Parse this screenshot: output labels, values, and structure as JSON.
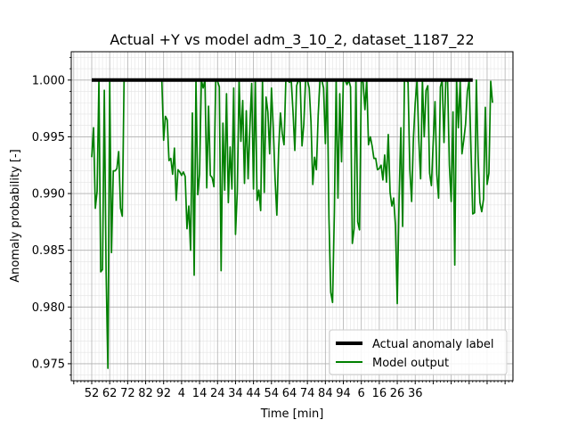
{
  "chart_data": {
    "type": "line",
    "title": "Actual +Y vs model adm_3_10_2, dataset_1187_22",
    "xlabel": "Time [min]",
    "ylabel": "Anomaly probability [-]",
    "ylim": [
      0.9735,
      1.0025
    ],
    "yticks": [
      "0.975",
      "0.980",
      "0.985",
      "0.990",
      "0.995",
      "1.000"
    ],
    "xticks": [
      "52",
      "62",
      "72",
      "82",
      "92",
      "4",
      "14",
      "24",
      "34",
      "44",
      "54",
      "64",
      "74",
      "84",
      "94",
      "6",
      "16",
      "26",
      "36"
    ],
    "grid": true,
    "legend_position": "lower right",
    "series": [
      {
        "name": "Actual anomaly label",
        "color": "#000000",
        "values": [
          1,
          1,
          1,
          1,
          1,
          1,
          1,
          1,
          1,
          1,
          1,
          1,
          1,
          1,
          1,
          1,
          1,
          1,
          1,
          1,
          1,
          1,
          1,
          1,
          1,
          1,
          1,
          1,
          1,
          1,
          1,
          1,
          1,
          1,
          1,
          1,
          1,
          1,
          1,
          1,
          1,
          1,
          1,
          1,
          1,
          1,
          1,
          1,
          1,
          1,
          1,
          1,
          1,
          1,
          1,
          1,
          1,
          1,
          1,
          1,
          1,
          1,
          1,
          1,
          1,
          1,
          1,
          1,
          1,
          1,
          1,
          1,
          1,
          1,
          1,
          1,
          1,
          1,
          1,
          1,
          1,
          1,
          1,
          1,
          1,
          1,
          1,
          1,
          1,
          1,
          1,
          1,
          1,
          1,
          1,
          1,
          1,
          1,
          1,
          1,
          1,
          1,
          1,
          1,
          1,
          1,
          1,
          1,
          1,
          1,
          1,
          1,
          1,
          1,
          1,
          1,
          1,
          1,
          1,
          1,
          1,
          1,
          1,
          1,
          1,
          1,
          1,
          1,
          1,
          1,
          1,
          1,
          1,
          1,
          1,
          1,
          1,
          1,
          1,
          1,
          1,
          1,
          1,
          1,
          1,
          1,
          1,
          1,
          1,
          1,
          1,
          1,
          1,
          1,
          1,
          1,
          1,
          1,
          1,
          1,
          1,
          1,
          1,
          1,
          1,
          1,
          1,
          1,
          1,
          1,
          1,
          1,
          1,
          1,
          1,
          1,
          1,
          1,
          1,
          1,
          1,
          1,
          1,
          1,
          1,
          1,
          1,
          1,
          1,
          1,
          1,
          1,
          1,
          1,
          1,
          1,
          1,
          1,
          1,
          1,
          1,
          1,
          1,
          1,
          1,
          1,
          1,
          1,
          1,
          1,
          1,
          1,
          1
        ]
      },
      {
        "name": "Model output",
        "color": "#008000",
        "values": [
          0.9932,
          0.9958,
          0.9887,
          0.9902,
          1.0,
          0.9831,
          0.9833,
          0.9991,
          0.9831,
          0.9746,
          1.0,
          0.9848,
          0.992,
          0.992,
          0.9922,
          0.9937,
          0.9887,
          0.988,
          1.0,
          1.0,
          1.0,
          1.0,
          1.0,
          1.0,
          1.0,
          1.0,
          1.0,
          1.0,
          1.0,
          1.0,
          1.0,
          1.0,
          1.0,
          1.0,
          1.0,
          1.0,
          1.0,
          1.0,
          1.0,
          1.0,
          0.9947,
          0.9968,
          0.9965,
          0.9929,
          0.9931,
          0.9917,
          0.994,
          0.9894,
          0.9921,
          0.9919,
          0.9916,
          0.9919,
          0.9915,
          0.9869,
          0.9889,
          0.985,
          0.9971,
          0.9828,
          1.0,
          0.9899,
          0.9917,
          1.0,
          0.9993,
          1.0,
          0.9905,
          0.9977,
          0.9916,
          0.9914,
          0.9906,
          1.0,
          0.9999,
          0.9994,
          0.9832,
          0.9962,
          0.9903,
          0.9988,
          0.9892,
          0.9941,
          0.9904,
          0.9993,
          0.9864,
          0.9902,
          1.0,
          0.9946,
          0.9982,
          0.9909,
          0.9973,
          0.9913,
          0.9959,
          0.9997,
          0.9904,
          1.0,
          0.9894,
          0.9903,
          0.9885,
          1.0,
          0.9901,
          0.9985,
          0.9972,
          0.9935,
          0.9993,
          0.9958,
          0.9913,
          0.9881,
          0.9939,
          0.9971,
          0.9953,
          0.9943,
          1.0,
          1.0,
          0.9998,
          1.0,
          0.9972,
          0.9938,
          0.9995,
          1.0,
          0.9998,
          0.9942,
          0.9961,
          1.0,
          1.0,
          0.9993,
          0.9963,
          0.9908,
          0.9932,
          0.9921,
          0.9969,
          1.0,
          1.0,
          0.9993,
          0.9944,
          1.0,
          0.9878,
          0.9813,
          0.9804,
          0.9883,
          1.0,
          0.9896,
          0.9988,
          0.9928,
          1.0,
          1.0,
          0.9996,
          1.0,
          0.9994,
          0.9856,
          0.9869,
          1.0,
          0.9875,
          0.9868,
          1.0,
          0.9998,
          0.9974,
          1.0,
          0.9943,
          0.995,
          0.9942,
          0.9931,
          0.9931,
          0.9921,
          0.9922,
          0.9925,
          0.9912,
          0.9934,
          0.991,
          0.9952,
          0.9901,
          0.9889,
          0.9896,
          0.9872,
          0.9803,
          0.9894,
          0.9958,
          0.9871,
          1.0,
          1.0,
          0.9998,
          0.9921,
          0.9893,
          0.9949,
          0.998,
          1.0,
          0.9947,
          0.9913,
          1.0,
          0.995,
          0.9991,
          0.9995,
          0.9918,
          0.9907,
          0.9945,
          0.9981,
          0.9917,
          0.9896,
          0.9994,
          1.0,
          0.9945,
          1.0,
          0.9999,
          0.9925,
          0.9893,
          0.9972,
          0.9837,
          1.0,
          0.9958,
          0.9999,
          0.9935,
          0.9947,
          0.9961,
          0.999,
          1.0,
          0.994,
          0.9882,
          0.9883,
          1.0,
          0.9931,
          0.9892,
          0.9884,
          0.9895,
          0.9976,
          0.9908,
          0.9918,
          0.9999,
          0.998
        ]
      }
    ]
  }
}
